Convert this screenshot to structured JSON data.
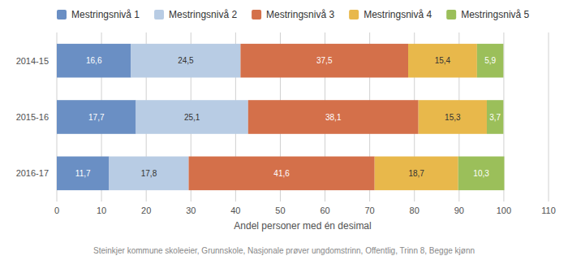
{
  "chart_data": {
    "type": "bar",
    "orientation": "horizontal",
    "stacked": true,
    "data_labels": true,
    "grid": true,
    "legend": "top",
    "categories": [
      "2014-15",
      "2015-16",
      "2016-17"
    ],
    "series": [
      {
        "name": "Mestringsnivå 1",
        "color": "#6a8fc4",
        "values": [
          16.6,
          17.7,
          11.7
        ],
        "value_labels": [
          "16,6",
          "17,7",
          "11,7"
        ]
      },
      {
        "name": "Mestringsnivå 2",
        "color": "#b8cce4",
        "values": [
          24.5,
          25.1,
          17.8
        ],
        "value_labels": [
          "24,5",
          "25,1",
          "17,8"
        ]
      },
      {
        "name": "Mestringsnivå 3",
        "color": "#d4704a",
        "values": [
          37.5,
          38.1,
          41.6
        ],
        "value_labels": [
          "37,5",
          "38,1",
          "41,6"
        ]
      },
      {
        "name": "Mestringsnivå 4",
        "color": "#e8b84b",
        "values": [
          15.4,
          15.3,
          18.7
        ],
        "value_labels": [
          "15,4",
          "15,3",
          "18,7"
        ]
      },
      {
        "name": "Mestringsnivå 5",
        "color": "#9bbf5a",
        "values": [
          5.9,
          3.7,
          10.3
        ],
        "value_labels": [
          "5,9",
          "3,7",
          "10,3"
        ]
      }
    ],
    "xlabel": "Andel personer med én desimal",
    "xlim": [
      0,
      110
    ],
    "xticks": [
      0,
      10,
      20,
      30,
      40,
      50,
      60,
      70,
      80,
      90,
      100,
      110
    ],
    "annotations": [
      "Steinkjer kommune skoleeier, Grunnskole, Nasjonale prøver ungdomstrinn, Offentlig, Trinn 8, Begge kjønn"
    ]
  }
}
